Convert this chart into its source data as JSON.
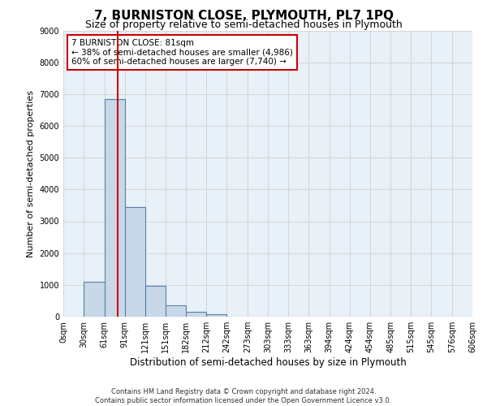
{
  "title": "7, BURNISTON CLOSE, PLYMOUTH, PL7 1PQ",
  "subtitle": "Size of property relative to semi-detached houses in Plymouth",
  "xlabel": "Distribution of semi-detached houses by size in Plymouth",
  "ylabel": "Number of semi-detached properties",
  "footer_line1": "Contains HM Land Registry data © Crown copyright and database right 2024.",
  "footer_line2": "Contains public sector information licensed under the Open Government Licence v3.0.",
  "bin_edges": [
    0,
    30,
    61,
    91,
    121,
    151,
    182,
    212,
    242,
    273,
    303,
    333,
    363,
    394,
    424,
    454,
    485,
    515,
    545,
    576,
    606
  ],
  "bar_heights": [
    0,
    1100,
    6850,
    3450,
    980,
    370,
    150,
    80,
    0,
    0,
    0,
    0,
    0,
    0,
    0,
    0,
    0,
    0,
    0,
    0
  ],
  "bar_color": "#c8d8e8",
  "bar_edge_color": "#5580aa",
  "bar_linewidth": 0.8,
  "vline_x": 81,
  "vline_color": "#cc0000",
  "vline_linewidth": 1.5,
  "annotation_line1": "7 BURNISTON CLOSE: 81sqm",
  "annotation_line2": "← 38% of semi-detached houses are smaller (4,986)",
  "annotation_line3": "60% of semi-detached houses are larger (7,740) →",
  "annotation_box_color": "#cc0000",
  "annotation_box_bg": "#ffffff",
  "ylim": [
    0,
    9000
  ],
  "yticks": [
    0,
    1000,
    2000,
    3000,
    4000,
    5000,
    6000,
    7000,
    8000,
    9000
  ],
  "xtick_labels": [
    "0sqm",
    "30sqm",
    "61sqm",
    "91sqm",
    "121sqm",
    "151sqm",
    "182sqm",
    "212sqm",
    "242sqm",
    "273sqm",
    "303sqm",
    "333sqm",
    "363sqm",
    "394sqm",
    "424sqm",
    "454sqm",
    "485sqm",
    "515sqm",
    "545sqm",
    "576sqm",
    "606sqm"
  ],
  "grid_color": "#cccccc",
  "bg_color": "#e8f0f8",
  "title_fontsize": 11,
  "subtitle_fontsize": 9,
  "xlabel_fontsize": 8.5,
  "ylabel_fontsize": 8,
  "tick_fontsize": 7,
  "annotation_fontsize": 7.5,
  "footer_fontsize": 6
}
